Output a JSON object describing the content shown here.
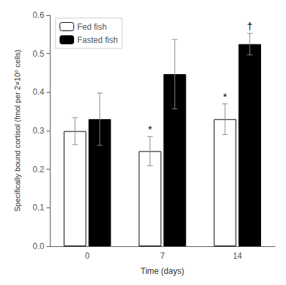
{
  "chart_data": {
    "type": "bar",
    "xlabel": "Time (days)",
    "ylabel": "Specifically bound cortisol (fmol per 2×10⁶ cells)",
    "categories": [
      "0",
      "7",
      "14"
    ],
    "series": [
      {
        "name": "Fed fish",
        "color": "#ffffff",
        "values": [
          0.299,
          0.247,
          0.33
        ],
        "errors": [
          0.035,
          0.038,
          0.04
        ]
      },
      {
        "name": "Fasted fish",
        "color": "#000000",
        "values": [
          0.33,
          0.447,
          0.525
        ],
        "errors": [
          0.068,
          0.09,
          0.028
        ]
      }
    ],
    "annotations": [
      {
        "series": "Fed fish",
        "category": "7",
        "text": "*"
      },
      {
        "series": "Fed fish",
        "category": "14",
        "text": "*"
      },
      {
        "series": "Fasted fish",
        "category": "14",
        "text": "†"
      }
    ],
    "edge_color": "#000000",
    "error_color": "#888888",
    "ylim": [
      0,
      0.6
    ],
    "yticks": [
      {
        "value": 0,
        "label": "0.0"
      },
      0.1,
      0.2,
      0.3,
      0.4,
      0.5,
      0.6
    ],
    "grid": false,
    "legend": "upper left"
  }
}
